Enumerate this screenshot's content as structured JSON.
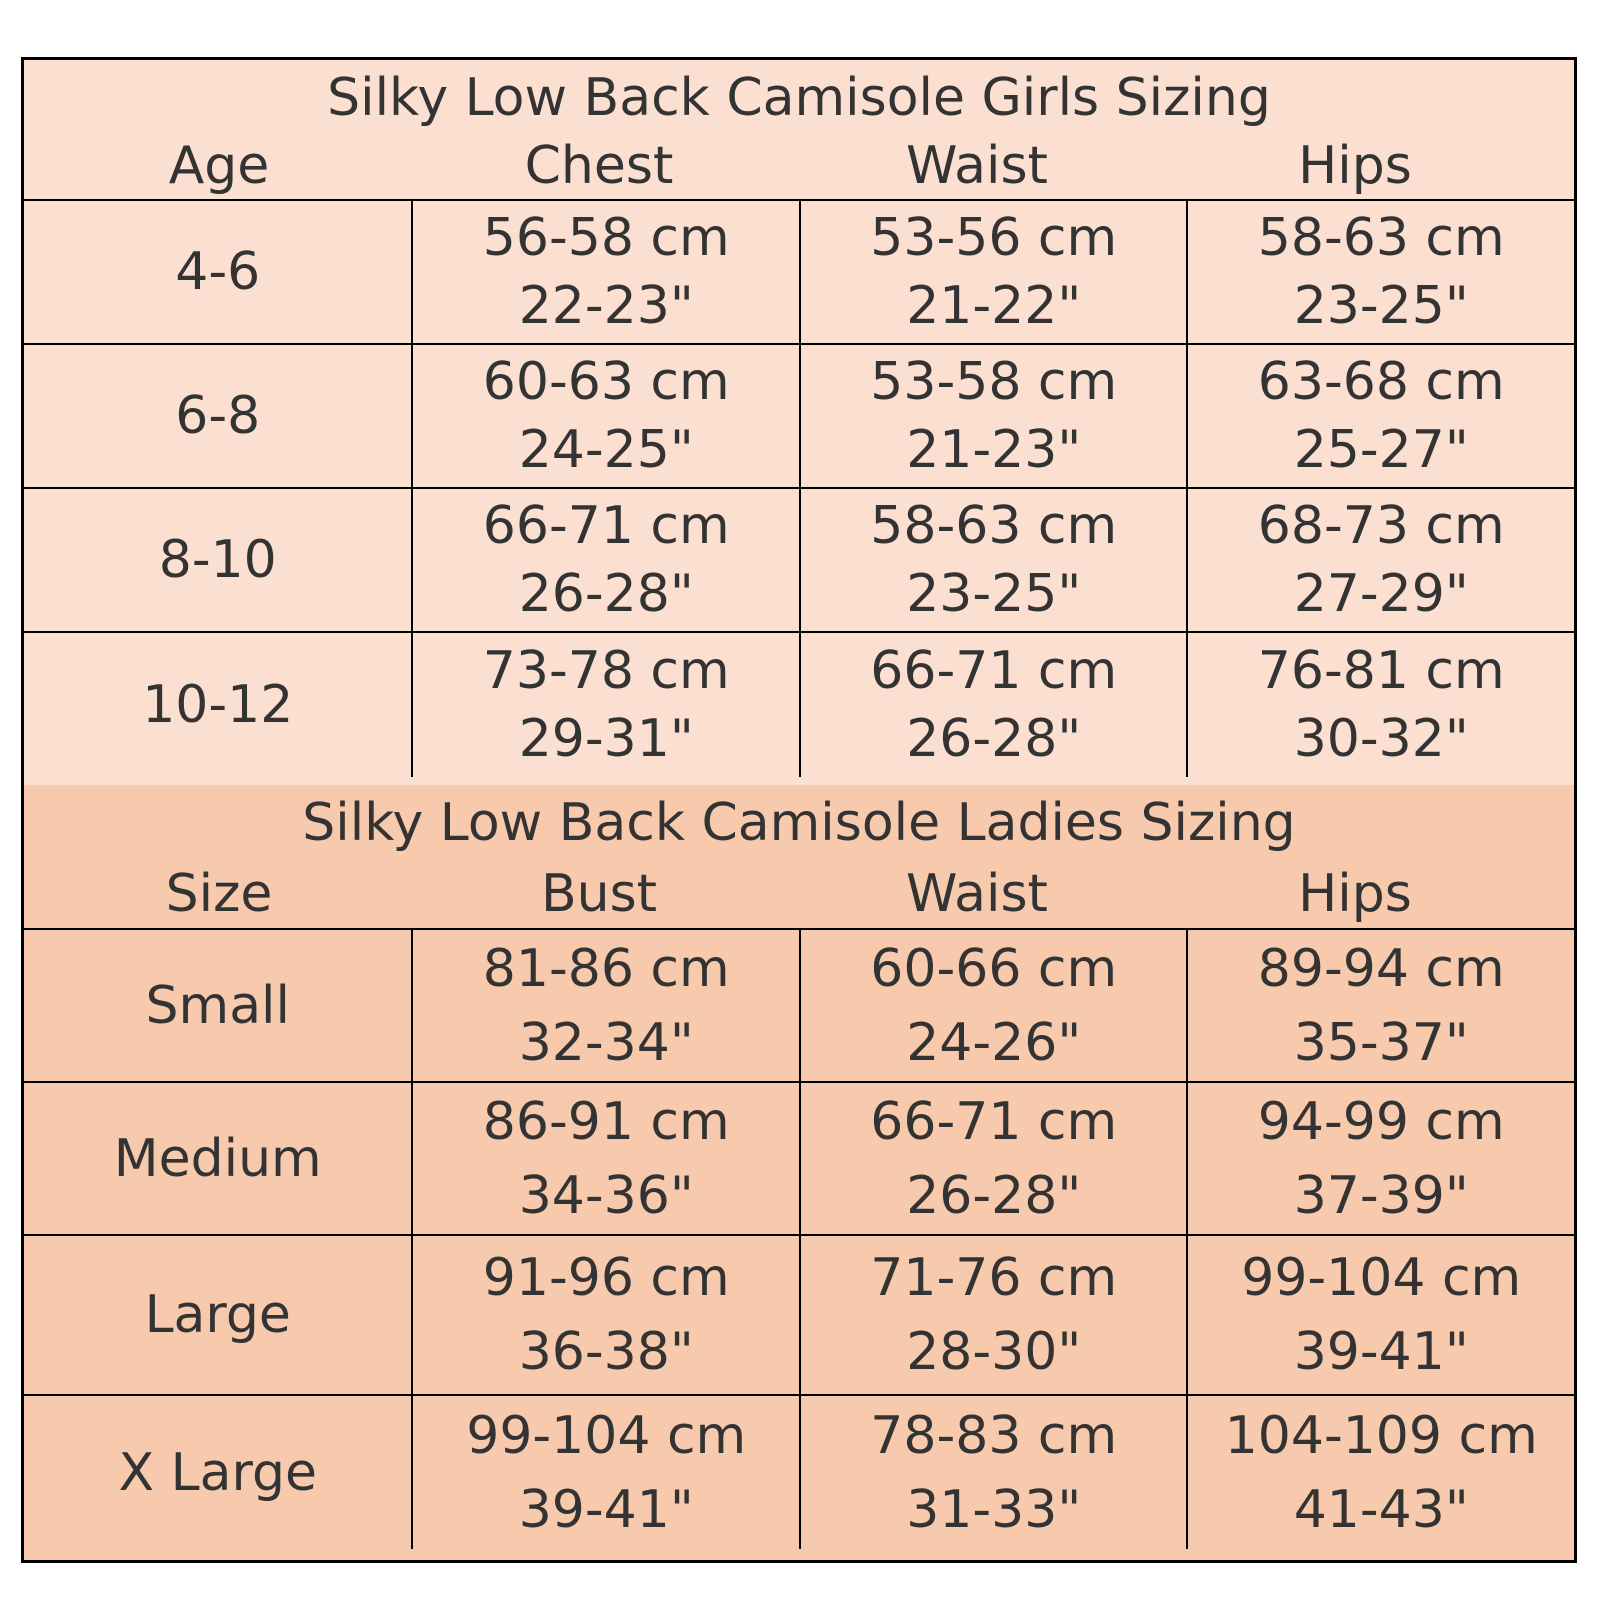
{
  "girls": {
    "title": "Silky Low Back Camisole Girls Sizing",
    "headers": [
      "Age",
      "Chest",
      "Waist",
      "Hips"
    ],
    "rows": [
      {
        "label": "4-6",
        "chest": [
          "56-58 cm",
          "22-23\""
        ],
        "waist": [
          "53-56 cm",
          "21-22\""
        ],
        "hips": [
          "58-63 cm",
          "23-25\""
        ]
      },
      {
        "label": "6-8",
        "chest": [
          "60-63 cm",
          "24-25\""
        ],
        "waist": [
          "53-58 cm",
          "21-23\""
        ],
        "hips": [
          "63-68 cm",
          "25-27\""
        ]
      },
      {
        "label": "8-10",
        "chest": [
          "66-71 cm",
          "26-28\""
        ],
        "waist": [
          "58-63 cm",
          "23-25\""
        ],
        "hips": [
          "68-73 cm",
          "27-29\""
        ]
      },
      {
        "label": "10-12",
        "chest": [
          "73-78 cm",
          "29-31\""
        ],
        "waist": [
          "66-71 cm",
          "26-28\""
        ],
        "hips": [
          "76-81 cm",
          "30-32\""
        ]
      }
    ]
  },
  "ladies": {
    "title": "Silky Low Back Camisole Ladies Sizing",
    "headers": [
      "Size",
      "Bust",
      "Waist",
      "Hips"
    ],
    "rows": [
      {
        "label": "Small",
        "chest": [
          "81-86 cm",
          "32-34\""
        ],
        "waist": [
          "60-66 cm",
          "24-26\""
        ],
        "hips": [
          "89-94 cm",
          "35-37\""
        ]
      },
      {
        "label": "Medium",
        "chest": [
          "86-91 cm",
          "34-36\""
        ],
        "waist": [
          "66-71 cm",
          "26-28\""
        ],
        "hips": [
          "94-99 cm",
          "37-39\""
        ]
      },
      {
        "label": "Large",
        "chest": [
          "91-96 cm",
          "36-38\""
        ],
        "waist": [
          "71-76 cm",
          "28-30\""
        ],
        "hips": [
          "99-104 cm",
          "39-41\""
        ]
      },
      {
        "label": "X Large",
        "chest": [
          "99-104 cm",
          "39-41\""
        ],
        "waist": [
          "78-83 cm",
          "31-33\""
        ],
        "hips": [
          "104-109 cm",
          "41-43\""
        ]
      }
    ]
  },
  "colors": {
    "girls_bg": "#fbe0d2",
    "ladies_bg": "#f7c9ad",
    "border": "#000000",
    "text": "#333333"
  }
}
